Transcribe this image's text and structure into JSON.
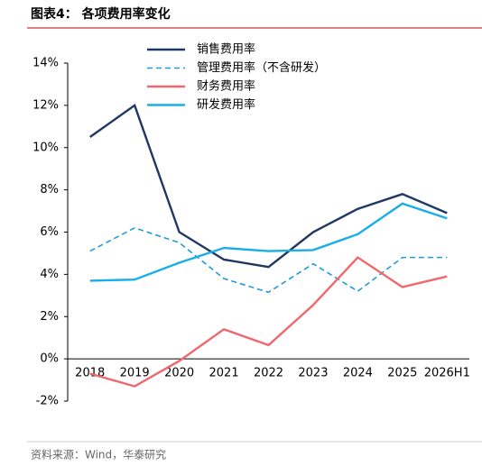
{
  "chart_data": {
    "type": "line",
    "title": "图表4： 各项费用率变化",
    "source": "资料来源：Wind，华泰研究",
    "categories": [
      "2018",
      "2019",
      "2020",
      "2021",
      "2022",
      "2023",
      "2024",
      "2025",
      "2026H1"
    ],
    "series": [
      {
        "name": "销售费用率",
        "color": "#1f3864",
        "line_style": "solid",
        "values": [
          10.5,
          12.0,
          6.0,
          4.7,
          4.35,
          6.0,
          7.1,
          7.8,
          6.9
        ]
      },
      {
        "name": "管理费用率（不含研发）",
        "color": "#1f9bd7",
        "line_style": "dashed",
        "values": [
          5.1,
          6.2,
          5.5,
          3.8,
          3.15,
          4.5,
          3.2,
          4.8,
          4.8
        ]
      },
      {
        "name": "财务费用率",
        "color": "#f0686e",
        "line_style": "solid",
        "values": [
          -0.7,
          -1.3,
          -0.1,
          1.4,
          0.65,
          2.55,
          4.8,
          3.4,
          3.9
        ]
      },
      {
        "name": "研发费用率",
        "color": "#1aaee8",
        "line_style": "solid",
        "values": [
          3.7,
          3.75,
          4.55,
          5.25,
          5.1,
          5.15,
          5.9,
          7.35,
          6.65
        ]
      }
    ],
    "ylim": [
      -2,
      14
    ],
    "yticks": [
      {
        "value": 14,
        "label": "14%"
      },
      {
        "value": 12,
        "label": "12%"
      },
      {
        "value": 10,
        "label": "10%"
      },
      {
        "value": 8,
        "label": "8%"
      },
      {
        "value": 6,
        "label": "6%"
      },
      {
        "value": 4,
        "label": "4%"
      },
      {
        "value": 2,
        "label": "2%"
      },
      {
        "value": 0,
        "label": "0%"
      },
      {
        "value": -2,
        "label": "-2%"
      }
    ],
    "grid": false
  }
}
